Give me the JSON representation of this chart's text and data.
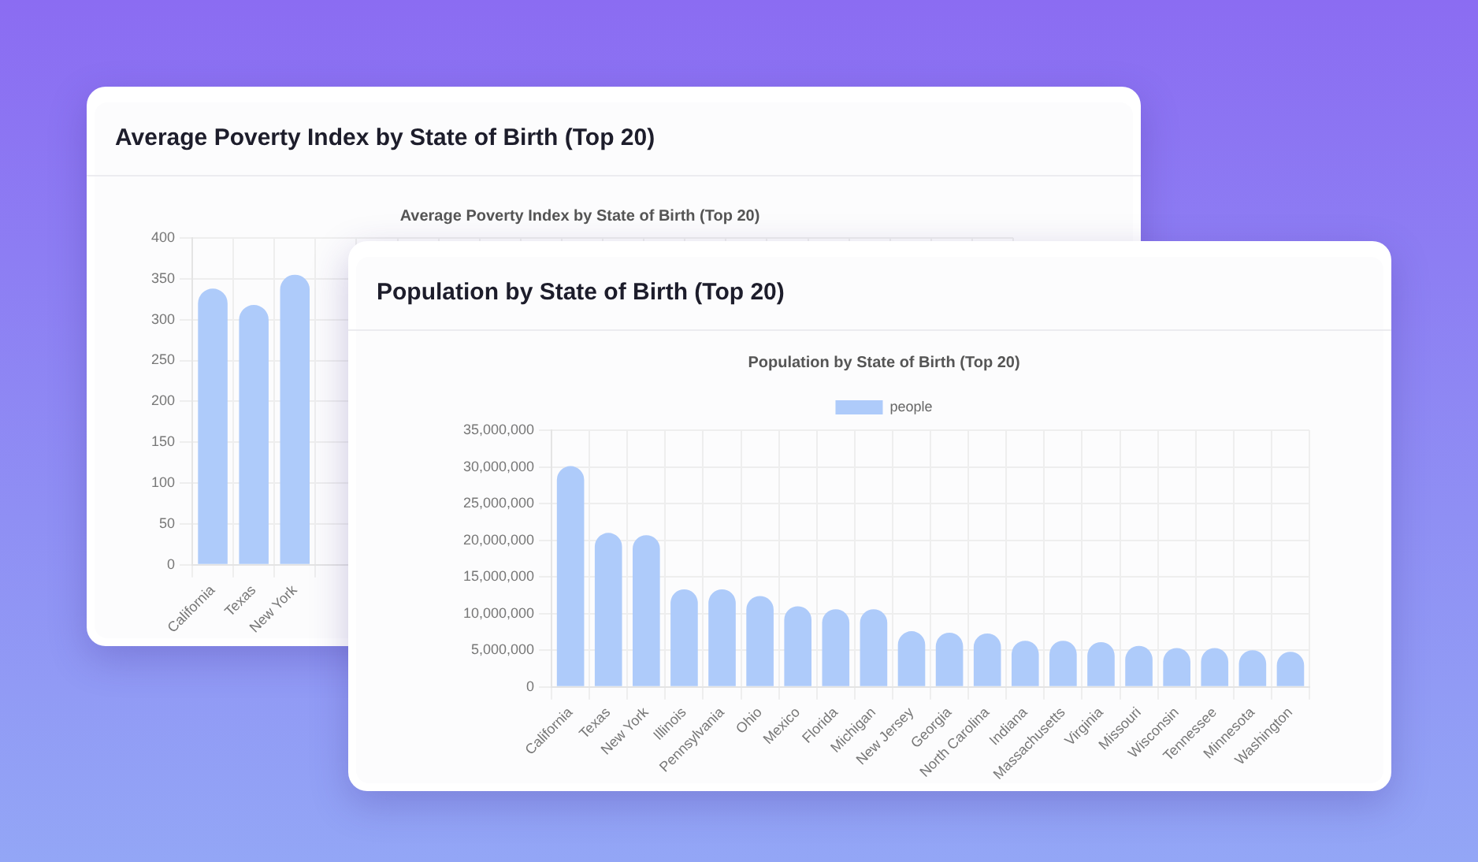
{
  "chart_data": [
    {
      "type": "bar",
      "title": "Average Poverty Index by State of Birth (Top 20)",
      "categories": [
        "California",
        "Texas",
        "New York",
        null,
        null,
        null,
        null,
        null,
        null,
        null,
        null,
        null,
        null,
        null,
        null,
        null,
        null,
        null,
        null,
        null
      ],
      "series": [
        {
          "color": "#aecbfa",
          "values": [
            338,
            318,
            355,
            null,
            null,
            null,
            null,
            null,
            null,
            null,
            null,
            null,
            null,
            null,
            null,
            null,
            null,
            null,
            null,
            null
          ]
        }
      ],
      "ylim": [
        0,
        400
      ],
      "yticks": [
        0,
        50,
        100,
        150,
        200,
        250,
        300,
        350,
        400
      ],
      "grid": true
    },
    {
      "type": "bar",
      "title": "Population by State of Birth (Top 20)",
      "categories": [
        "California",
        "Texas",
        "New York",
        "Illinois",
        "Pennsylvania",
        "Ohio",
        "Mexico",
        "Florida",
        "Michigan",
        "New Jersey",
        "Georgia",
        "North Carolina",
        "Indiana",
        "Massachusetts",
        "Virginia",
        "Missouri",
        "Wisconsin",
        "Tennessee",
        "Minnesota",
        "Washington"
      ],
      "series": [
        {
          "name": "people",
          "color": "#aecbfa",
          "values": [
            30100000,
            21000000,
            20700000,
            13300000,
            13300000,
            12400000,
            11000000,
            10600000,
            10600000,
            7600000,
            7400000,
            7300000,
            6300000,
            6300000,
            6100000,
            5600000,
            5300000,
            5300000,
            5000000,
            4800000
          ]
        }
      ],
      "ylim": [
        0,
        35000000
      ],
      "yticks": [
        {
          "value": 0,
          "label": "0"
        },
        {
          "value": 5000000,
          "label": "5,000,000"
        },
        {
          "value": 10000000,
          "label": "10,000,000"
        },
        {
          "value": 15000000,
          "label": "15,000,000"
        },
        {
          "value": 20000000,
          "label": "20,000,000"
        },
        {
          "value": 25000000,
          "label": "25,000,000"
        },
        {
          "value": 30000000,
          "label": "30,000,000"
        },
        {
          "value": 35000000,
          "label": "35,000,000"
        }
      ],
      "grid": true,
      "legend": "top"
    }
  ]
}
